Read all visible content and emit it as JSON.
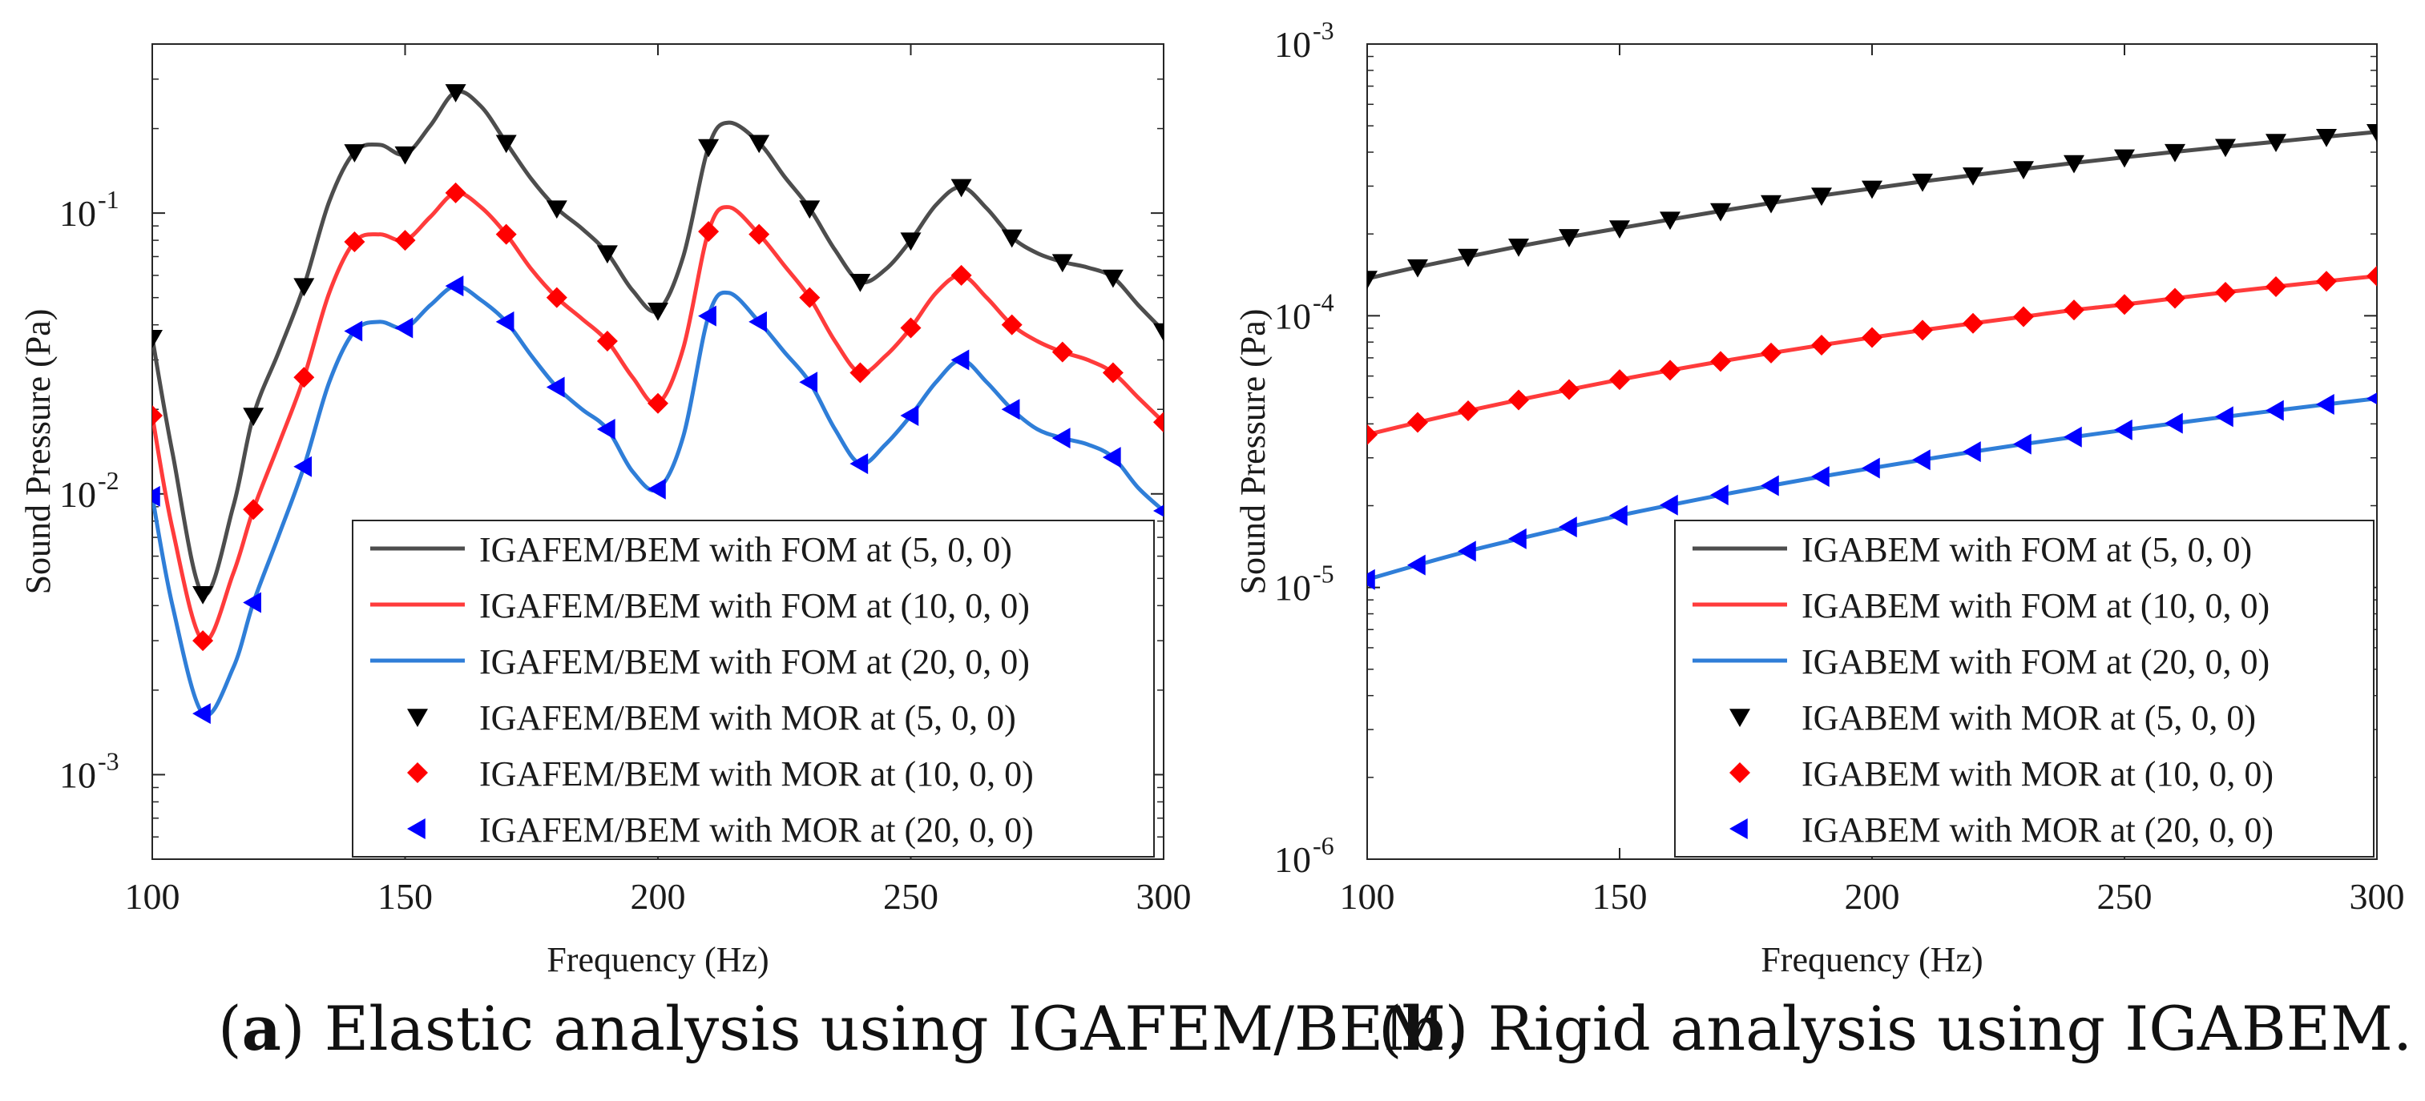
{
  "chart_data": [
    {
      "type": "line",
      "panel": "a",
      "xlabel": "Frequency (Hz)",
      "ylabel": "Sound Pressure (Pa)",
      "xlim": [
        100,
        300
      ],
      "ylim": [
        0.0005,
        0.4
      ],
      "yscale": "log",
      "xticks": [
        100,
        150,
        200,
        250,
        300
      ],
      "yticks": [
        {
          "value": 0.001,
          "base": "10",
          "exp": "-3"
        },
        {
          "value": 0.01,
          "base": "10",
          "exp": "-2"
        },
        {
          "value": 0.1,
          "base": "10",
          "exp": "-1"
        }
      ],
      "legend_position": "bottom-right",
      "x": [
        100,
        110,
        120,
        130,
        140,
        150,
        160,
        170,
        180,
        190,
        200,
        210,
        220,
        230,
        240,
        250,
        260,
        270,
        280,
        290,
        300
      ],
      "series": [
        {
          "name": "IGAFEM/BEM with FOM at (5, 0, 0)",
          "kind": "line",
          "color": "#4d4d4d",
          "x": [
            100,
            104,
            110,
            116,
            120,
            125,
            130,
            135,
            140,
            145,
            150,
            155,
            160,
            165,
            170,
            175,
            180,
            185,
            190,
            195,
            200,
            205,
            210,
            214,
            220,
            225,
            230,
            235,
            240,
            245,
            250,
            255,
            260,
            265,
            270,
            275,
            280,
            285,
            290,
            295,
            300
          ],
          "values": [
            0.036,
            0.014,
            0.0044,
            0.009,
            0.019,
            0.032,
            0.055,
            0.11,
            0.165,
            0.175,
            0.162,
            0.205,
            0.27,
            0.24,
            0.178,
            0.132,
            0.104,
            0.088,
            0.072,
            0.053,
            0.045,
            0.07,
            0.172,
            0.21,
            0.178,
            0.135,
            0.104,
            0.074,
            0.057,
            0.063,
            0.08,
            0.107,
            0.124,
            0.104,
            0.082,
            0.072,
            0.067,
            0.064,
            0.059,
            0.047,
            0.038
          ]
        },
        {
          "name": "IGAFEM/BEM with FOM at (10, 0, 0)",
          "kind": "line",
          "color": "#ff3b3b",
          "x": [
            100,
            104,
            110,
            116,
            120,
            125,
            130,
            135,
            140,
            145,
            150,
            155,
            160,
            165,
            170,
            175,
            180,
            185,
            190,
            195,
            200,
            205,
            210,
            214,
            220,
            225,
            230,
            235,
            240,
            245,
            250,
            255,
            260,
            265,
            270,
            275,
            280,
            285,
            290,
            295,
            300
          ],
          "values": [
            0.019,
            0.0075,
            0.003,
            0.0052,
            0.0088,
            0.015,
            0.026,
            0.052,
            0.079,
            0.084,
            0.08,
            0.097,
            0.118,
            0.105,
            0.084,
            0.063,
            0.05,
            0.042,
            0.035,
            0.026,
            0.021,
            0.033,
            0.086,
            0.105,
            0.084,
            0.065,
            0.05,
            0.035,
            0.027,
            0.031,
            0.039,
            0.052,
            0.06,
            0.05,
            0.04,
            0.035,
            0.032,
            0.03,
            0.027,
            0.022,
            0.018
          ]
        },
        {
          "name": "IGAFEM/BEM with FOM at (20, 0, 0)",
          "kind": "line",
          "color": "#2f7ed8",
          "x": [
            100,
            104,
            110,
            116,
            120,
            125,
            130,
            135,
            140,
            145,
            150,
            155,
            160,
            165,
            170,
            175,
            180,
            185,
            190,
            195,
            200,
            205,
            210,
            214,
            220,
            225,
            230,
            235,
            240,
            245,
            250,
            255,
            260,
            265,
            270,
            275,
            280,
            285,
            290,
            295,
            300
          ],
          "values": [
            0.0098,
            0.004,
            0.00165,
            0.0024,
            0.0041,
            0.0071,
            0.0125,
            0.025,
            0.038,
            0.041,
            0.039,
            0.047,
            0.055,
            0.049,
            0.041,
            0.031,
            0.024,
            0.02,
            0.017,
            0.012,
            0.0104,
            0.016,
            0.043,
            0.052,
            0.041,
            0.032,
            0.025,
            0.017,
            0.0128,
            0.015,
            0.019,
            0.025,
            0.03,
            0.025,
            0.02,
            0.017,
            0.0158,
            0.015,
            0.0135,
            0.0105,
            0.0087
          ]
        },
        {
          "name": "IGAFEM/BEM with MOR at (5, 0, 0)",
          "kind": "marker",
          "marker": "triangle-down",
          "color": "#000000",
          "values": [
            0.036,
            0.0044,
            0.019,
            0.055,
            0.165,
            0.162,
            0.27,
            0.178,
            0.104,
            0.072,
            0.045,
            0.172,
            0.178,
            0.104,
            0.057,
            0.08,
            0.124,
            0.082,
            0.067,
            0.059,
            0.038
          ]
        },
        {
          "name": "IGAFEM/BEM with MOR at (10, 0, 0)",
          "kind": "marker",
          "marker": "diamond",
          "color": "#ff0000",
          "values": [
            0.019,
            0.003,
            0.0088,
            0.026,
            0.079,
            0.08,
            0.118,
            0.084,
            0.05,
            0.035,
            0.021,
            0.086,
            0.084,
            0.05,
            0.027,
            0.039,
            0.06,
            0.04,
            0.032,
            0.027,
            0.018
          ]
        },
        {
          "name": "IGAFEM/BEM with MOR at (20, 0, 0)",
          "kind": "marker",
          "marker": "triangle-left",
          "color": "#0000ff",
          "values": [
            0.0098,
            0.00165,
            0.0041,
            0.0125,
            0.038,
            0.039,
            0.055,
            0.041,
            0.024,
            0.017,
            0.0104,
            0.043,
            0.041,
            0.025,
            0.0128,
            0.019,
            0.03,
            0.02,
            0.0158,
            0.0135,
            0.0087
          ]
        }
      ]
    },
    {
      "type": "line",
      "panel": "b",
      "xlabel": "Frequency (Hz)",
      "ylabel": "Sound Pressure (Pa)",
      "xlim": [
        100,
        300
      ],
      "ylim": [
        1e-06,
        0.001
      ],
      "yscale": "log",
      "xticks": [
        100,
        150,
        200,
        250,
        300
      ],
      "yticks": [
        {
          "value": 1e-06,
          "base": "10",
          "exp": "-6"
        },
        {
          "value": 1e-05,
          "base": "10",
          "exp": "-5"
        },
        {
          "value": 0.0001,
          "base": "10",
          "exp": "-4"
        },
        {
          "value": 0.001,
          "base": "10",
          "exp": "-3"
        }
      ],
      "legend_position": "bottom-right",
      "x": [
        100,
        110,
        120,
        130,
        140,
        150,
        160,
        170,
        180,
        190,
        200,
        210,
        220,
        230,
        240,
        250,
        260,
        270,
        280,
        290,
        300
      ],
      "series": [
        {
          "name": "IGABEM with FOM at (5, 0, 0)",
          "kind": "line",
          "color": "#4d4d4d",
          "values": [
            0.000137,
            0.000151,
            0.000165,
            0.00018,
            0.000195,
            0.00021,
            0.000226,
            0.000243,
            0.00026,
            0.000277,
            0.000294,
            0.000312,
            0.000329,
            0.000347,
            0.000365,
            0.000383,
            0.000401,
            0.000419,
            0.000437,
            0.000456,
            0.000475
          ]
        },
        {
          "name": "IGABEM with FOM at (10, 0, 0)",
          "kind": "line",
          "color": "#ff3b3b",
          "values": [
            3.65e-05,
            4.05e-05,
            4.47e-05,
            4.9e-05,
            5.35e-05,
            5.82e-05,
            6.3e-05,
            6.79e-05,
            7.29e-05,
            7.8e-05,
            8.32e-05,
            8.85e-05,
            9.38e-05,
            9.92e-05,
            0.000105,
            0.00011,
            0.000116,
            0.000122,
            0.000128,
            0.000134,
            0.00014
          ]
        },
        {
          "name": "IGABEM with FOM at (20, 0, 0)",
          "kind": "line",
          "color": "#2f7ed8",
          "values": [
            1.07e-05,
            1.21e-05,
            1.36e-05,
            1.51e-05,
            1.67e-05,
            1.84e-05,
            2.01e-05,
            2.19e-05,
            2.37e-05,
            2.56e-05,
            2.75e-05,
            2.95e-05,
            3.16e-05,
            3.37e-05,
            3.58e-05,
            3.8e-05,
            4.02e-05,
            4.25e-05,
            4.48e-05,
            4.72e-05,
            4.96e-05
          ]
        },
        {
          "name": "IGABEM with MOR at (5, 0, 0)",
          "kind": "marker",
          "marker": "triangle-down",
          "color": "#000000",
          "values": [
            0.000137,
            0.000151,
            0.000165,
            0.00018,
            0.000195,
            0.00021,
            0.000226,
            0.000243,
            0.00026,
            0.000277,
            0.000294,
            0.000312,
            0.000329,
            0.000347,
            0.000365,
            0.000383,
            0.000401,
            0.000419,
            0.000437,
            0.000456,
            0.000475
          ]
        },
        {
          "name": "IGABEM with MOR at (10, 0, 0)",
          "kind": "marker",
          "marker": "diamond",
          "color": "#ff0000",
          "values": [
            3.65e-05,
            4.05e-05,
            4.47e-05,
            4.9e-05,
            5.35e-05,
            5.82e-05,
            6.3e-05,
            6.79e-05,
            7.29e-05,
            7.8e-05,
            8.32e-05,
            8.85e-05,
            9.38e-05,
            9.92e-05,
            0.000105,
            0.00011,
            0.000116,
            0.000122,
            0.000128,
            0.000134,
            0.00014
          ]
        },
        {
          "name": "IGABEM with MOR at (20, 0, 0)",
          "kind": "marker",
          "marker": "triangle-left",
          "color": "#0000ff",
          "values": [
            1.07e-05,
            1.21e-05,
            1.36e-05,
            1.51e-05,
            1.67e-05,
            1.84e-05,
            2.01e-05,
            2.19e-05,
            2.37e-05,
            2.56e-05,
            2.75e-05,
            2.95e-05,
            3.16e-05,
            3.37e-05,
            3.58e-05,
            3.8e-05,
            4.02e-05,
            4.25e-05,
            4.48e-05,
            4.72e-05,
            4.96e-05
          ]
        }
      ]
    }
  ],
  "captions": {
    "a": {
      "label": "a",
      "text": "Elastic analysis using IGAFEM/BEM."
    },
    "b": {
      "label": "b",
      "text": "Rigid analysis using IGABEM."
    }
  }
}
